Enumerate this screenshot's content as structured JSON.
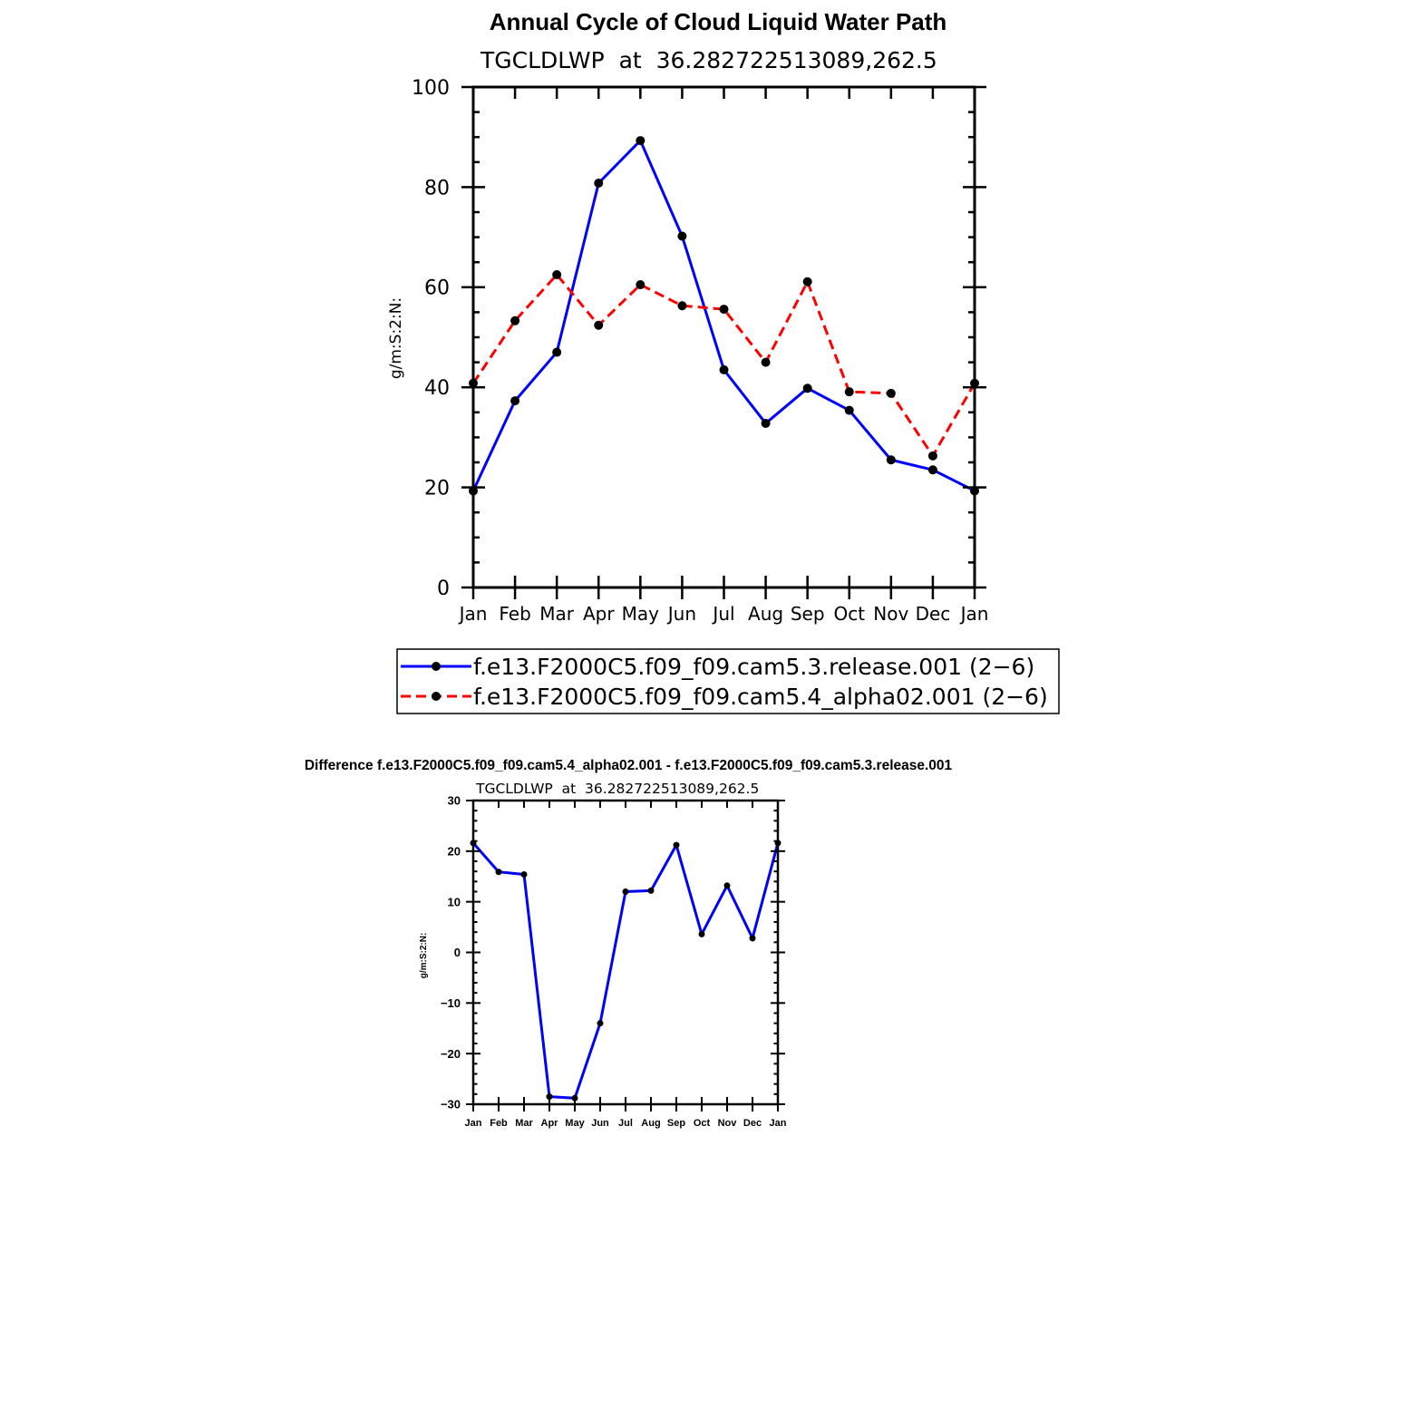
{
  "chart_data": [
    {
      "type": "line",
      "title": "Annual Cycle of Cloud Liquid Water Path",
      "subtitle": "TGCLDLWP  at  36.282722513089,262.5",
      "xlabel": "",
      "ylabel": "g/m:S:2:N:",
      "categories": [
        "Jan",
        "Feb",
        "Mar",
        "Apr",
        "May",
        "Jun",
        "Jul",
        "Aug",
        "Sep",
        "Oct",
        "Nov",
        "Dec",
        "Jan"
      ],
      "ylim": [
        0,
        100
      ],
      "yticks": [
        0,
        20,
        40,
        60,
        80,
        100
      ],
      "ytick_labels": [
        "0",
        "20",
        "40",
        "60",
        "80",
        "100"
      ],
      "grid": false,
      "legend_position": "bottom",
      "series": [
        {
          "name": "f.e13.F2000C5.f09_f09.cam5.3.release.001 (2−6)",
          "color": "#0000ff",
          "dash": "solid",
          "values": [
            19.3,
            37.3,
            47.0,
            80.8,
            89.3,
            70.2,
            43.5,
            32.8,
            39.8,
            35.4,
            25.5,
            23.5,
            19.3
          ]
        },
        {
          "name": "f.e13.F2000C5.f09_f09.cam5.4_alpha02.001 (2−6)",
          "color": "#ff0000",
          "dash": "dashed",
          "values": [
            40.8,
            53.3,
            62.5,
            52.4,
            60.5,
            56.3,
            55.6,
            45.0,
            61.1,
            39.1,
            38.8,
            26.3,
            40.8
          ]
        }
      ]
    },
    {
      "type": "line",
      "title": "Difference f.e13.F2000C5.f09_f09.cam5.4_alpha02.001 - f.e13.F2000C5.f09_f09.cam5.3.release.001",
      "subtitle": "TGCLDLWP  at  36.282722513089,262.5",
      "xlabel": "",
      "ylabel": "g/m:S:2:N:",
      "categories": [
        "Jan",
        "Feb",
        "Mar",
        "Apr",
        "May",
        "Jun",
        "Jul",
        "Aug",
        "Sep",
        "Oct",
        "Nov",
        "Dec",
        "Jan"
      ],
      "ylim": [
        -30,
        30
      ],
      "yticks": [
        -30,
        -20,
        -10,
        0,
        10,
        20,
        30
      ],
      "ytick_labels": [
        "−30",
        "−20",
        "−10",
        "0",
        "10",
        "20",
        "30"
      ],
      "grid": false,
      "series": [
        {
          "color": "#0000ff",
          "dash": "solid",
          "values": [
            21.6,
            15.9,
            15.4,
            -28.5,
            -28.8,
            -14.0,
            12.0,
            12.2,
            21.2,
            3.6,
            13.2,
            2.8,
            21.6
          ]
        }
      ]
    }
  ]
}
